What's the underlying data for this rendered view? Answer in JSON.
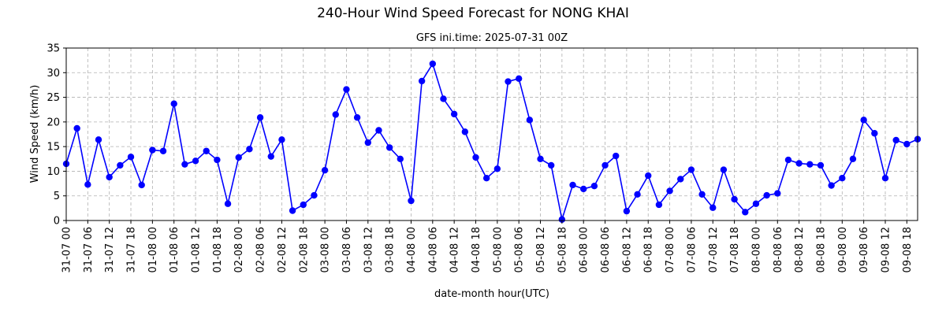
{
  "chart_data": {
    "type": "line",
    "title": "240-Hour Wind Speed Forecast for NONG KHAI",
    "subtitle": "GFS ini.time: 2025-07-31 00Z",
    "xlabel": "date-month hour(UTC)",
    "ylabel": "Wind Speed (km/h)",
    "ylim": [
      0,
      35
    ],
    "yticks": [
      0,
      5,
      10,
      15,
      20,
      25,
      30,
      35
    ],
    "grid": true,
    "x_tick_labels": [
      "31-07 00",
      "31-07 06",
      "31-07 12",
      "31-07 18",
      "01-08 00",
      "01-08 06",
      "01-08 12",
      "01-08 18",
      "02-08 00",
      "02-08 06",
      "02-08 12",
      "02-08 18",
      "03-08 00",
      "03-08 06",
      "03-08 12",
      "03-08 18",
      "04-08 00",
      "04-08 06",
      "04-08 12",
      "04-08 18",
      "05-08 00",
      "05-08 06",
      "05-08 12",
      "05-08 18",
      "06-08 00",
      "06-08 06",
      "06-08 12",
      "06-08 18",
      "07-08 00",
      "07-08 06",
      "07-08 12",
      "07-08 18",
      "08-08 00",
      "08-08 06",
      "08-08 12",
      "08-08 18",
      "09-08 00",
      "09-08 06",
      "09-08 12",
      "09-08 18"
    ],
    "x_tick_hours": [
      0,
      6,
      12,
      18,
      24,
      30,
      36,
      42,
      48,
      54,
      60,
      66,
      72,
      78,
      84,
      90,
      96,
      102,
      108,
      114,
      120,
      126,
      132,
      138,
      144,
      150,
      156,
      162,
      168,
      174,
      180,
      186,
      192,
      198,
      204,
      210,
      216,
      222,
      228,
      234
    ],
    "xlim_hours": [
      0,
      237
    ],
    "color": "#0000ff",
    "series": [
      {
        "hours": [
          0,
          3,
          6,
          9,
          12,
          15,
          18,
          21,
          24,
          27,
          30,
          33,
          36,
          39,
          42,
          45,
          48,
          51,
          54,
          57,
          60,
          63,
          66,
          69,
          72,
          75,
          78,
          81,
          84,
          87,
          90,
          93,
          96,
          99,
          102,
          105,
          108,
          111,
          114,
          117,
          120,
          123,
          126,
          129,
          132,
          135,
          138,
          141,
          144,
          147,
          150,
          153,
          156,
          159,
          162,
          165,
          168,
          171,
          174,
          177,
          180,
          183,
          186,
          189,
          192,
          195,
          198,
          201,
          204,
          207,
          210,
          213,
          216,
          219,
          222,
          225,
          228,
          231,
          234,
          237
        ],
        "values": [
          11.5,
          18.7,
          7.3,
          16.4,
          8.8,
          11.2,
          12.9,
          7.2,
          14.3,
          14.1,
          23.7,
          11.4,
          12.1,
          14.1,
          12.3,
          3.4,
          12.8,
          14.5,
          20.9,
          13.0,
          16.4,
          2.0,
          3.2,
          5.1,
          10.2,
          21.5,
          26.6,
          20.9,
          15.8,
          18.3,
          14.8,
          12.5,
          4.0,
          28.3,
          31.8,
          24.7,
          21.6,
          18.0,
          12.8,
          8.6,
          10.5,
          28.2,
          28.8,
          20.4,
          12.5,
          11.2,
          0.2,
          7.2,
          6.4,
          7.0,
          11.2,
          13.1,
          1.9,
          5.3,
          9.1,
          3.2,
          6.0,
          8.4,
          10.3,
          5.3,
          2.6,
          10.3,
          4.3,
          1.7,
          3.4,
          5.1,
          5.5,
          12.3,
          11.6,
          11.4,
          11.2,
          7.1,
          8.6,
          12.5,
          20.4,
          17.7,
          8.6,
          16.3,
          15.5,
          16.5
        ]
      }
    ]
  }
}
